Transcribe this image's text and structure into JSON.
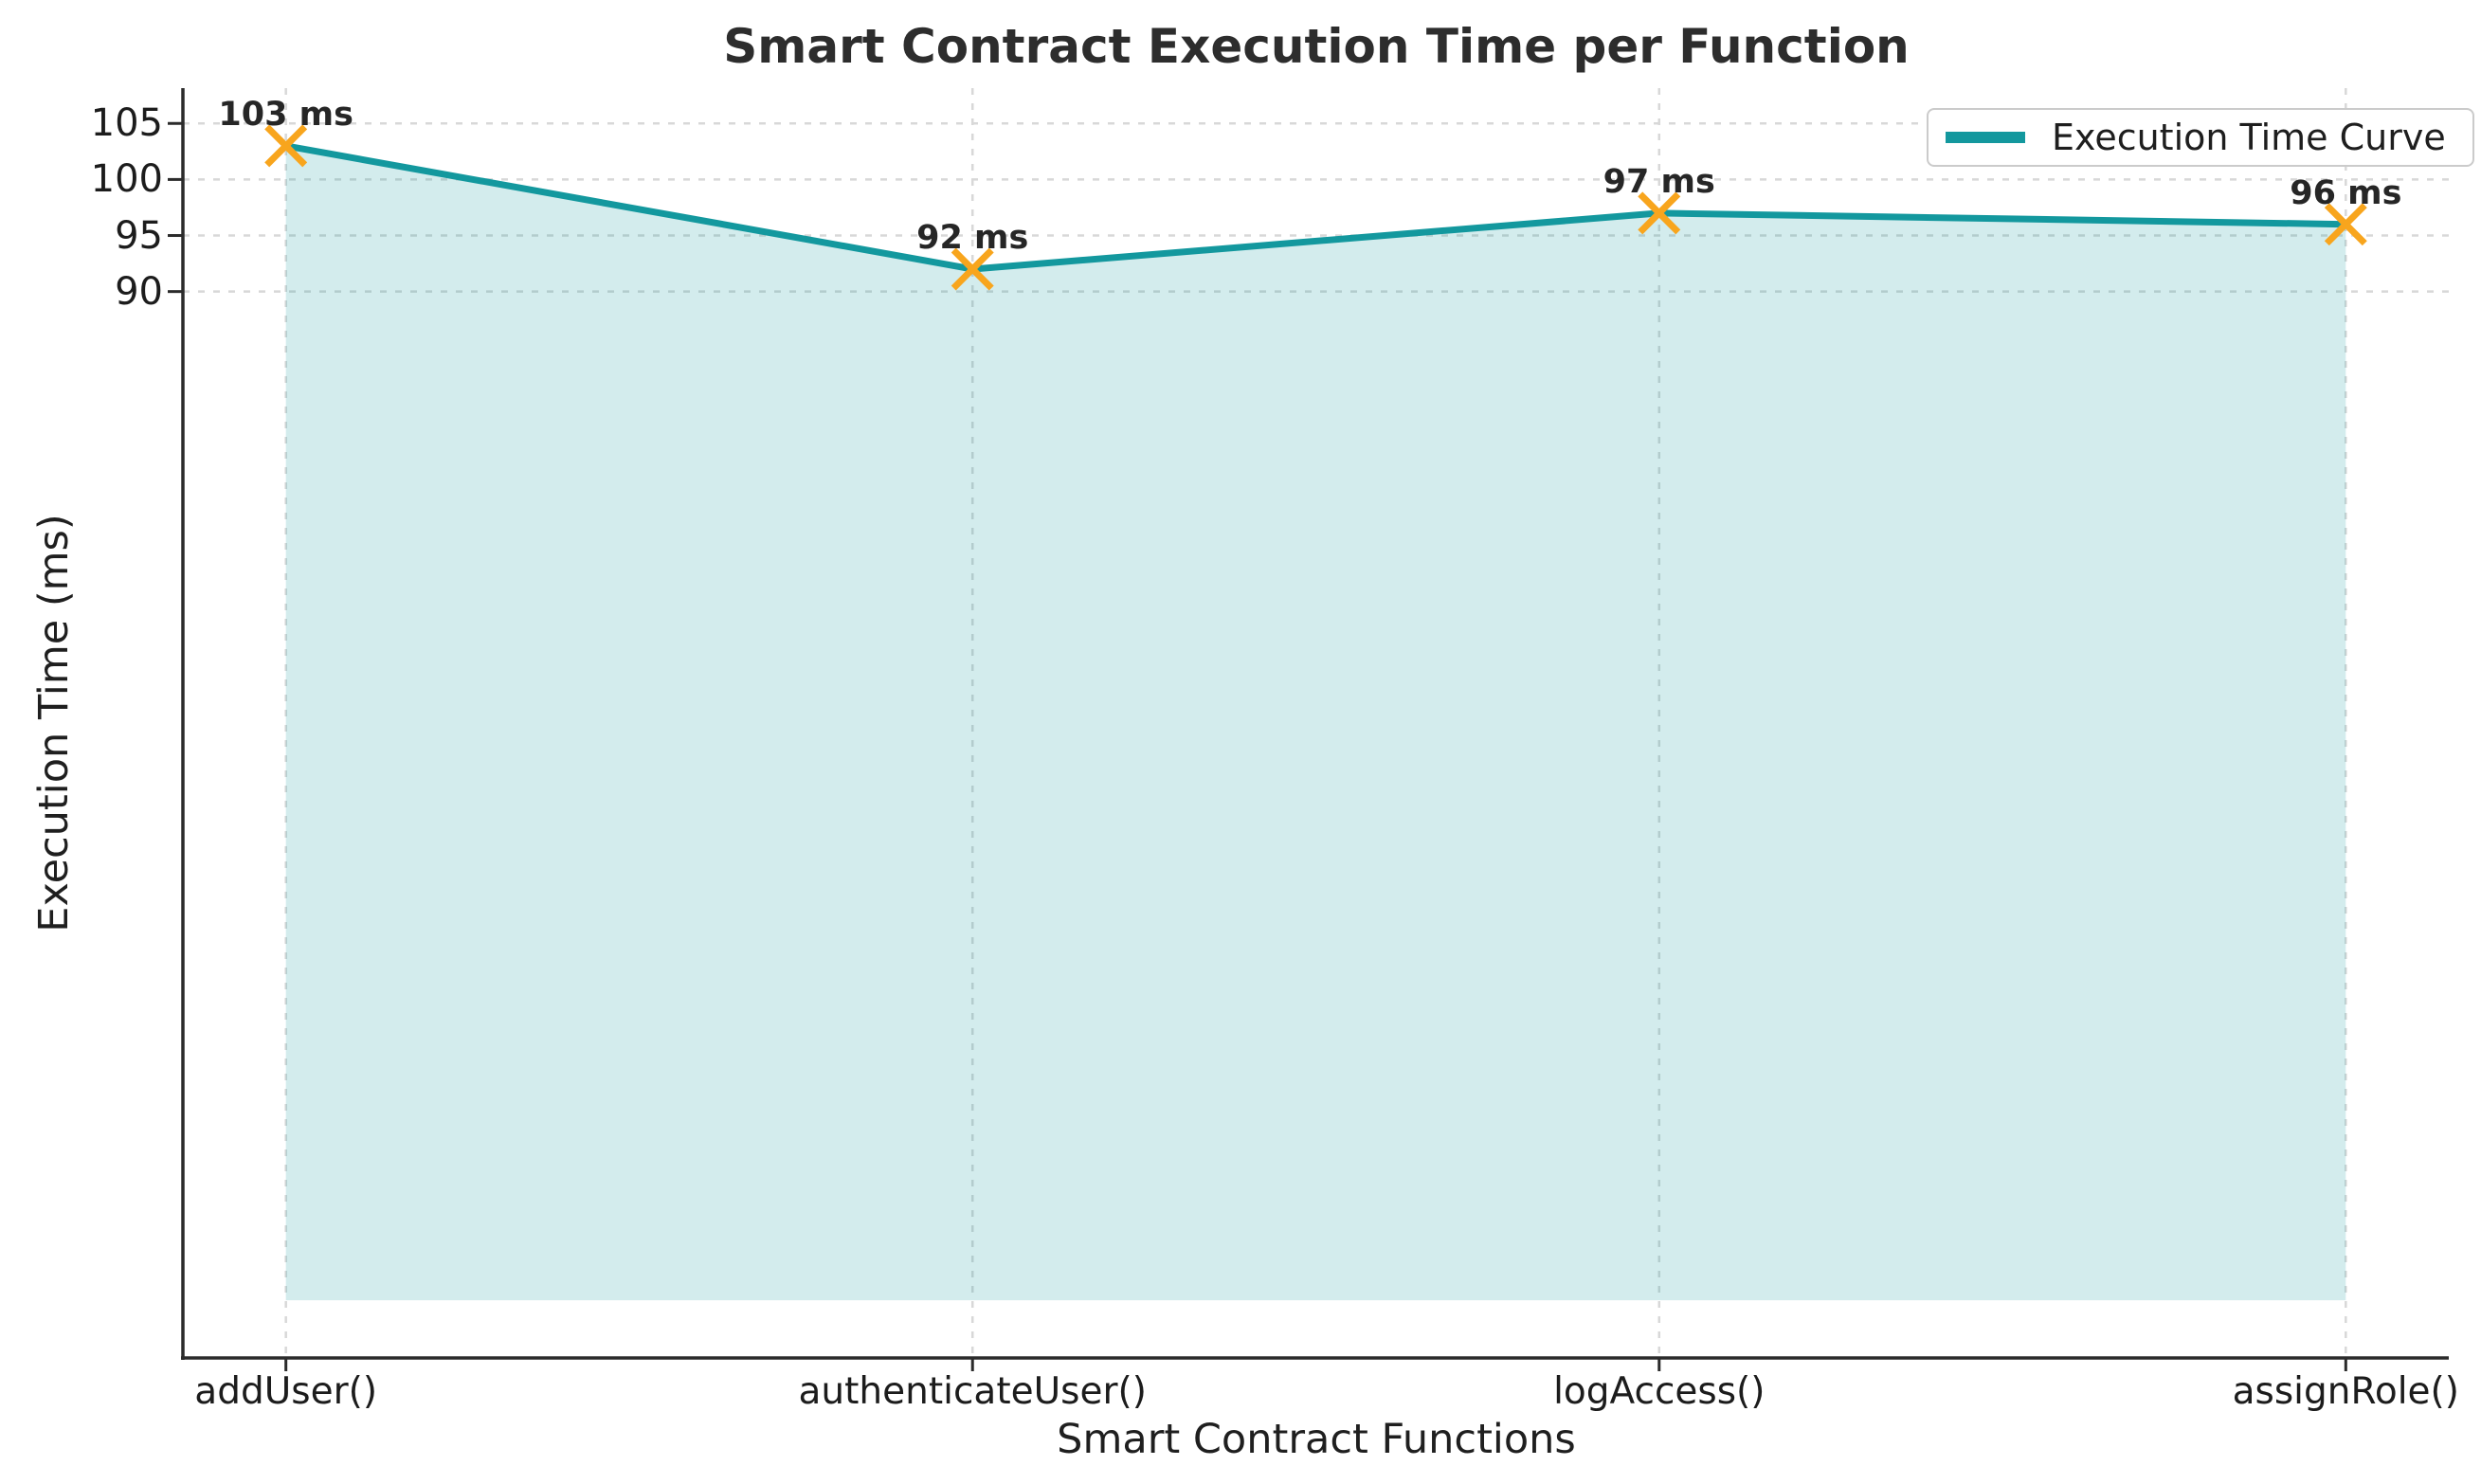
{
  "chart_data": {
    "type": "area",
    "title": "Smart Contract Execution Time per Function",
    "xlabel": "Smart Contract Functions",
    "ylabel": "Execution Time (ms)",
    "categories": [
      "addUser()",
      "authenticateUser()",
      "logAccess()",
      "assignRole()"
    ],
    "values": [
      103,
      92,
      97,
      96
    ],
    "point_labels": [
      "103 ms",
      "92 ms",
      "97 ms",
      "96 ms"
    ],
    "unit": "ms",
    "legend_label": "Execution Time Curve",
    "legend_position": "upper right",
    "marker": "x",
    "yticks": [
      105,
      100,
      95,
      90
    ],
    "ylim": [
      -5.15,
      108.15
    ],
    "xlim": [
      -0.15,
      3.15
    ],
    "fill_to": 0,
    "grid": true,
    "grid_style": "dashed",
    "colors": {
      "line": "#13989E",
      "fill": "rgba(19,152,158,0.19)",
      "marker": "#F8A51D",
      "grid": "#D8D8D8",
      "axis": "#2B2B2B",
      "text": "#1C1C1C",
      "title": "#2D2D2D"
    }
  }
}
